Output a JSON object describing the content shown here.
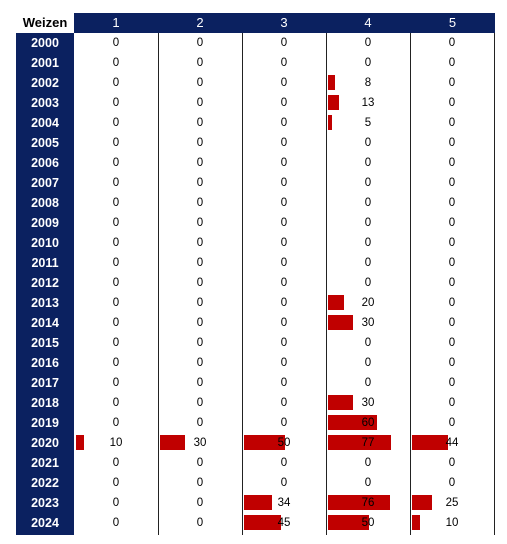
{
  "chart_data": {
    "type": "table",
    "title": "",
    "corner_label": "Weizen",
    "columns": [
      "1",
      "2",
      "3",
      "4",
      "5"
    ],
    "rows": [
      {
        "year": "2000",
        "values": [
          0,
          0,
          0,
          0,
          0
        ]
      },
      {
        "year": "2001",
        "values": [
          0,
          0,
          0,
          0,
          0
        ]
      },
      {
        "year": "2002",
        "values": [
          0,
          0,
          0,
          8,
          0
        ]
      },
      {
        "year": "2003",
        "values": [
          0,
          0,
          0,
          13,
          0
        ]
      },
      {
        "year": "2004",
        "values": [
          0,
          0,
          0,
          5,
          0
        ]
      },
      {
        "year": "2005",
        "values": [
          0,
          0,
          0,
          0,
          0
        ]
      },
      {
        "year": "2006",
        "values": [
          0,
          0,
          0,
          0,
          0
        ]
      },
      {
        "year": "2007",
        "values": [
          0,
          0,
          0,
          0,
          0
        ]
      },
      {
        "year": "2008",
        "values": [
          0,
          0,
          0,
          0,
          0
        ]
      },
      {
        "year": "2009",
        "values": [
          0,
          0,
          0,
          0,
          0
        ]
      },
      {
        "year": "2010",
        "values": [
          0,
          0,
          0,
          0,
          0
        ]
      },
      {
        "year": "2011",
        "values": [
          0,
          0,
          0,
          0,
          0
        ]
      },
      {
        "year": "2012",
        "values": [
          0,
          0,
          0,
          0,
          0
        ]
      },
      {
        "year": "2013",
        "values": [
          0,
          0,
          0,
          20,
          0
        ]
      },
      {
        "year": "2014",
        "values": [
          0,
          0,
          0,
          30,
          0
        ]
      },
      {
        "year": "2015",
        "values": [
          0,
          0,
          0,
          0,
          0
        ]
      },
      {
        "year": "2016",
        "values": [
          0,
          0,
          0,
          0,
          0
        ]
      },
      {
        "year": "2017",
        "values": [
          0,
          0,
          0,
          0,
          0
        ]
      },
      {
        "year": "2018",
        "values": [
          0,
          0,
          0,
          30,
          0
        ]
      },
      {
        "year": "2019",
        "values": [
          0,
          0,
          0,
          60,
          0
        ]
      },
      {
        "year": "2020",
        "values": [
          10,
          30,
          50,
          77,
          44
        ]
      },
      {
        "year": "2021",
        "values": [
          0,
          0,
          0,
          0,
          0
        ]
      },
      {
        "year": "2022",
        "values": [
          0,
          0,
          0,
          0,
          0
        ]
      },
      {
        "year": "2023",
        "values": [
          0,
          0,
          34,
          76,
          25
        ]
      },
      {
        "year": "2024",
        "values": [
          0,
          0,
          45,
          50,
          10
        ]
      }
    ],
    "bar_color": "#c00000",
    "header_color": "#0b2160",
    "scale_max": 77
  }
}
